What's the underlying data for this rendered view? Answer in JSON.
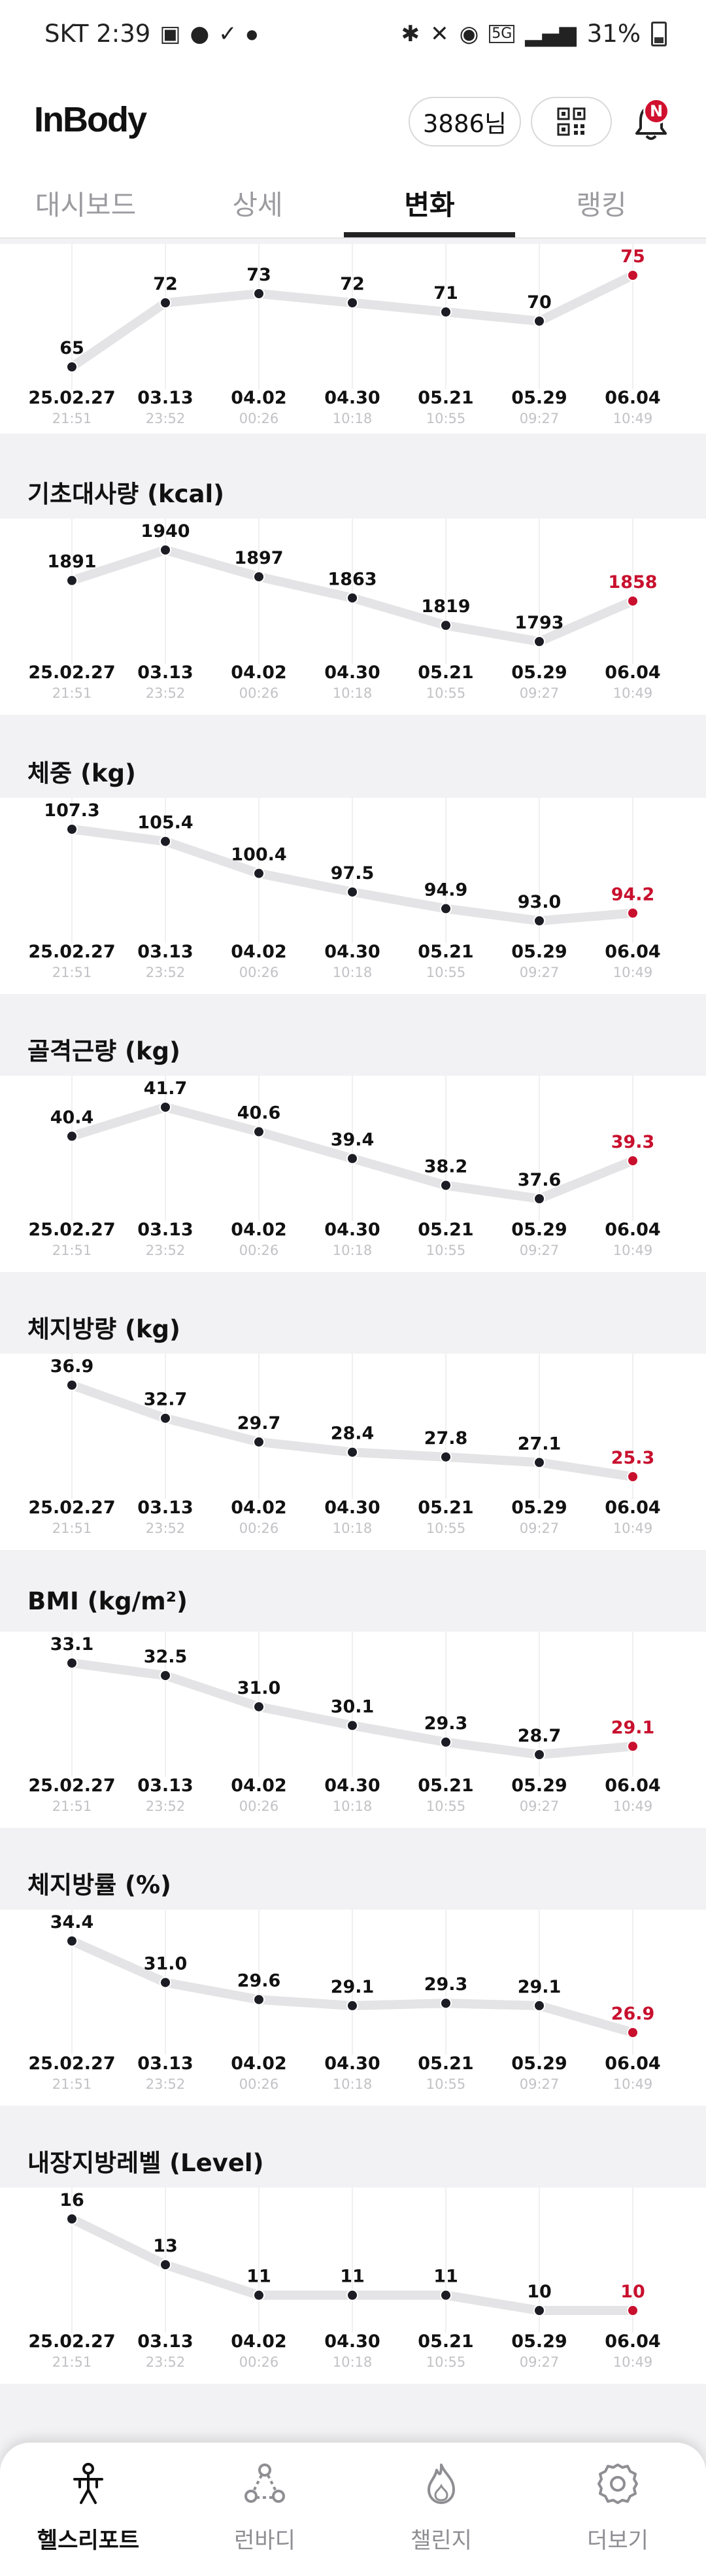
{
  "status_bar": {
    "carrier_time": "SKT 2:39",
    "battery": "31%"
  },
  "header": {
    "logo": "InBody",
    "user": "3886님",
    "notification_badge": "N"
  },
  "tabs": [
    {
      "label": "대시보드",
      "active": false
    },
    {
      "label": "상세",
      "active": false
    },
    {
      "label": "변화",
      "active": true
    },
    {
      "label": "랭킹",
      "active": false
    }
  ],
  "dates": [
    {
      "date": "25.02.27",
      "time": "21:51"
    },
    {
      "date": "03.13",
      "time": "23:52"
    },
    {
      "date": "04.02",
      "time": "00:26"
    },
    {
      "date": "04.30",
      "time": "10:18"
    },
    {
      "date": "05.21",
      "time": "10:55"
    },
    {
      "date": "05.29",
      "time": "09:27"
    },
    {
      "date": "06.04",
      "time": "10:49"
    }
  ],
  "colors": {
    "latest": "#c8102e",
    "line": "#e4e4e6",
    "dot": "#1c1c24",
    "label": "#111111"
  },
  "chart_data": [
    {
      "type": "line",
      "title": "",
      "values_text": [
        "65",
        "72",
        "73",
        "72",
        "71",
        "70",
        "75"
      ],
      "values": [
        65,
        72,
        73,
        72,
        71,
        70,
        75
      ]
    },
    {
      "type": "line",
      "title": "기초대사량 (kcal)",
      "values_text": [
        "1891",
        "1940",
        "1897",
        "1863",
        "1819",
        "1793",
        "1858"
      ],
      "values": [
        1891,
        1940,
        1897,
        1863,
        1819,
        1793,
        1858
      ]
    },
    {
      "type": "line",
      "title": "체중 (kg)",
      "values_text": [
        "107.3",
        "105.4",
        "100.4",
        "97.5",
        "94.9",
        "93.0",
        "94.2"
      ],
      "values": [
        107.3,
        105.4,
        100.4,
        97.5,
        94.9,
        93.0,
        94.2
      ]
    },
    {
      "type": "line",
      "title": "골격근량 (kg)",
      "values_text": [
        "40.4",
        "41.7",
        "40.6",
        "39.4",
        "38.2",
        "37.6",
        "39.3"
      ],
      "values": [
        40.4,
        41.7,
        40.6,
        39.4,
        38.2,
        37.6,
        39.3
      ]
    },
    {
      "type": "line",
      "title": "체지방량 (kg)",
      "values_text": [
        "36.9",
        "32.7",
        "29.7",
        "28.4",
        "27.8",
        "27.1",
        "25.3"
      ],
      "values": [
        36.9,
        32.7,
        29.7,
        28.4,
        27.8,
        27.1,
        25.3
      ]
    },
    {
      "type": "line",
      "title": "BMI (kg/m²)",
      "values_text": [
        "33.1",
        "32.5",
        "31.0",
        "30.1",
        "29.3",
        "28.7",
        "29.1"
      ],
      "values": [
        33.1,
        32.5,
        31.0,
        30.1,
        29.3,
        28.7,
        29.1
      ]
    },
    {
      "type": "line",
      "title": "체지방률 (%)",
      "values_text": [
        "34.4",
        "31.0",
        "29.6",
        "29.1",
        "29.3",
        "29.1",
        "26.9"
      ],
      "values": [
        34.4,
        31.0,
        29.6,
        29.1,
        29.3,
        29.1,
        26.9
      ]
    },
    {
      "type": "line",
      "title": "내장지방레벨 (Level)",
      "values_text": [
        "16",
        "13",
        "11",
        "11",
        "11",
        "10",
        "10"
      ],
      "values": [
        16,
        13,
        11,
        11,
        11,
        10,
        10
      ]
    }
  ],
  "bottom_nav": [
    {
      "label": "헬스리포트",
      "icon": "health-report-icon",
      "active": true
    },
    {
      "label": "런바디",
      "icon": "runbody-icon",
      "active": false
    },
    {
      "label": "챌린지",
      "icon": "challenge-flame-icon",
      "active": false
    },
    {
      "label": "더보기",
      "icon": "gear-icon",
      "active": false
    }
  ]
}
